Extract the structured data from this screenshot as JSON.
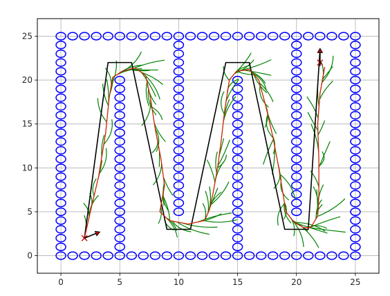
{
  "chart_data": {
    "type": "scatter",
    "title": "",
    "xlabel": "",
    "ylabel": "",
    "xlim": [
      -2,
      27
    ],
    "ylim": [
      -2,
      27
    ],
    "xticks": [
      0,
      5,
      10,
      15,
      20,
      25
    ],
    "yticks": [
      0,
      5,
      10,
      15,
      20,
      25
    ],
    "grid": true,
    "legend": "none",
    "colors": {
      "obstacles": "#0000ff",
      "reference_path": "#000000",
      "predicted_rollouts": "#008000",
      "executed_path": "#cc2200",
      "start_marker": "#cc0000",
      "goal_marker": "#cc0000",
      "arrow": "#000000",
      "grid": "#b0b0b0"
    },
    "obstacles": {
      "marker": "circle",
      "walls": [
        {
          "x_from": 0,
          "x_to": 25,
          "y": 0,
          "step": 1
        },
        {
          "x_from": 0,
          "x_to": 25,
          "y": 25,
          "step": 1
        },
        {
          "x": 0,
          "y_from": 1,
          "y_to": 24,
          "step": 1
        },
        {
          "x": 25,
          "y_from": 1,
          "y_to": 24,
          "step": 1
        },
        {
          "x": 5,
          "y_from": 1,
          "y_to": 20,
          "step": 1
        },
        {
          "x": 10,
          "y_from": 5,
          "y_to": 24,
          "step": 1
        },
        {
          "x": 15,
          "y_from": 1,
          "y_to": 20,
          "step": 1
        },
        {
          "x": 20,
          "y_from": 5,
          "y_to": 24,
          "step": 1
        }
      ]
    },
    "reference_path": [
      [
        2,
        2
      ],
      [
        4,
        22
      ],
      [
        6,
        22
      ],
      [
        9,
        3
      ],
      [
        11,
        3
      ],
      [
        14,
        22
      ],
      [
        16,
        22
      ],
      [
        19,
        3
      ],
      [
        21,
        3
      ],
      [
        22,
        23.5
      ]
    ],
    "executed_path": [
      [
        2,
        2
      ],
      [
        2.5,
        5
      ],
      [
        3.2,
        9
      ],
      [
        3.8,
        14
      ],
      [
        4.1,
        18
      ],
      [
        4.4,
        20.3
      ],
      [
        5.2,
        21
      ],
      [
        6.3,
        21.4
      ],
      [
        7.2,
        20.5
      ],
      [
        7.6,
        18
      ],
      [
        8,
        14.5
      ],
      [
        8.5,
        11
      ],
      [
        8.8,
        8
      ],
      [
        8.4,
        5
      ],
      [
        9.2,
        4
      ],
      [
        10.8,
        3.6
      ],
      [
        12.2,
        4
      ],
      [
        12.6,
        5.2
      ],
      [
        12.9,
        7
      ],
      [
        13.3,
        10
      ],
      [
        13.6,
        13
      ],
      [
        13.9,
        16.5
      ],
      [
        14.3,
        20
      ],
      [
        14.9,
        21
      ],
      [
        16,
        21.2
      ],
      [
        16.8,
        20
      ],
      [
        17.4,
        17
      ],
      [
        18,
        13.5
      ],
      [
        18.5,
        10
      ],
      [
        18.8,
        7.5
      ],
      [
        19.1,
        5
      ],
      [
        19.8,
        3.8
      ],
      [
        20.6,
        3.2
      ],
      [
        21.2,
        3.2
      ],
      [
        21.8,
        4.5
      ],
      [
        21.9,
        7
      ],
      [
        21.9,
        11
      ],
      [
        21.8,
        15
      ],
      [
        22,
        18.5
      ],
      [
        22.4,
        21.5
      ]
    ],
    "start": {
      "x": 2,
      "y": 2
    },
    "goal": {
      "x": 22,
      "y": 22
    },
    "start_heading_arrow": {
      "from": [
        2,
        2
      ],
      "to": [
        3.3,
        2.7
      ]
    },
    "goal_heading_arrow": {
      "from": [
        22,
        21.6
      ],
      "to": [
        22,
        23.6
      ]
    }
  }
}
